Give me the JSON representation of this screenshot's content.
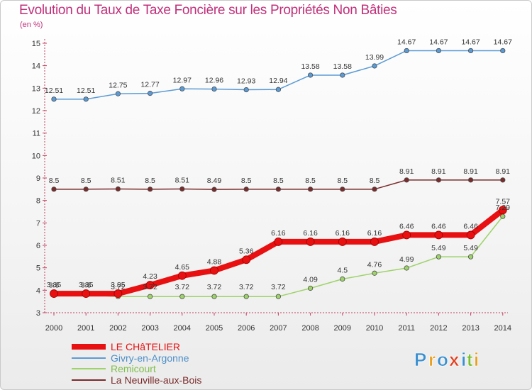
{
  "title": "Evolution du Taux de Taxe Foncière sur les Propriétés Non Bâties",
  "unit_label": "(en %)",
  "brand": {
    "text": "Proxiti",
    "letters": [
      "P",
      "r",
      "o",
      "x",
      "i",
      "t",
      "i"
    ],
    "colors": [
      "#3a8fd0",
      "#e8a020",
      "#3a8fd0",
      "#e04020",
      "#3a8fd0",
      "#7bbf30",
      "#e8a020"
    ]
  },
  "chart_data": {
    "type": "line",
    "title": "Evolution du Taux de Taxe Foncière sur les Propriétés Non Bâties",
    "ylabel": "(en %)",
    "xlabel": "",
    "x": [
      "2000",
      "2001",
      "2002",
      "2003",
      "2004",
      "2005",
      "2006",
      "2007",
      "2008",
      "2009",
      "2010",
      "2011",
      "2012",
      "2013",
      "2014"
    ],
    "ylim": [
      3,
      15
    ],
    "yticks": [
      3,
      4,
      5,
      6,
      7,
      8,
      9,
      10,
      11,
      12,
      13,
      14,
      15
    ],
    "grid": false,
    "legend_position": "bottom-left",
    "series": [
      {
        "name": "LE CHâTELIER",
        "color": "#e81010",
        "width": 8,
        "labels": [
          "3.85",
          "3.85",
          "3.85",
          "4.23",
          "4.65",
          "4.88",
          "5.36",
          "6.16",
          "6.16",
          "6.16",
          "6.16",
          "6.46",
          "6.46",
          "6.46",
          "7.57"
        ],
        "values": [
          3.85,
          3.85,
          3.85,
          4.23,
          4.65,
          4.88,
          5.36,
          6.16,
          6.16,
          6.16,
          6.16,
          6.46,
          6.46,
          6.46,
          7.57
        ]
      },
      {
        "name": "Givry-en-Argonne",
        "color": "#5b9bd5",
        "width": 1.5,
        "labels": [
          "12.51",
          "12.51",
          "12.75",
          "12.77",
          "12.97",
          "12.96",
          "12.93",
          "12.94",
          "13.58",
          "13.58",
          "13.99",
          "14.67",
          "14.67",
          "14.67",
          "14.67"
        ],
        "values": [
          12.51,
          12.51,
          12.75,
          12.77,
          12.97,
          12.96,
          12.93,
          12.94,
          13.58,
          13.58,
          13.99,
          14.67,
          14.67,
          14.67,
          14.67
        ]
      },
      {
        "name": "Remicourt",
        "color": "#9ed36a",
        "width": 1.5,
        "labels": [
          "3.8",
          "3.8",
          "3.72",
          "3.72",
          "3.72",
          "3.72",
          "3.72",
          "3.72",
          "4.09",
          "4.5",
          "4.76",
          "4.99",
          "5.49",
          "5.49",
          "7.29"
        ],
        "values": [
          3.8,
          3.8,
          3.72,
          3.72,
          3.72,
          3.72,
          3.72,
          3.72,
          4.09,
          4.5,
          4.76,
          4.99,
          5.49,
          5.49,
          7.29
        ]
      },
      {
        "name": "La Neuville-aux-Bois",
        "color": "#7a2b2b",
        "width": 1.5,
        "labels": [
          "8.5",
          "8.5",
          "8.51",
          "8.5",
          "8.51",
          "8.49",
          "8.5",
          "8.5",
          "8.5",
          "8.5",
          "8.5",
          "8.91",
          "8.91",
          "8.91",
          "8.91"
        ],
        "values": [
          8.5,
          8.5,
          8.51,
          8.5,
          8.51,
          8.49,
          8.5,
          8.5,
          8.5,
          8.5,
          8.5,
          8.91,
          8.91,
          8.91,
          8.91
        ]
      }
    ]
  }
}
